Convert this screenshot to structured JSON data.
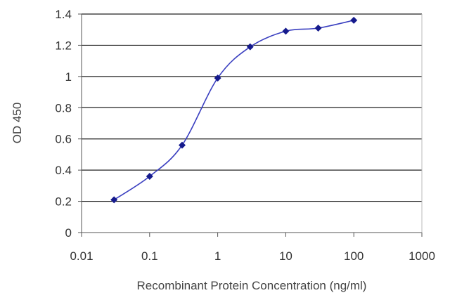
{
  "chart_data": {
    "type": "line",
    "title": "",
    "xlabel": "Recombinant Protein Concentration (ng/ml)",
    "ylabel": "OD 450",
    "x_scale": "log",
    "xlim": [
      0.01,
      1000
    ],
    "ylim": [
      0,
      1.4
    ],
    "x_ticks": [
      "0.01",
      "0.1",
      "1",
      "10",
      "100",
      "1000"
    ],
    "y_ticks": [
      "0",
      "0.2",
      "0.4",
      "0.6",
      "0.8",
      "1",
      "1.2",
      "1.4"
    ],
    "grid": "horizontal",
    "legend": "none",
    "series": [
      {
        "x": [
          0.03,
          0.1,
          0.3,
          1,
          3,
          10,
          30,
          100
        ],
        "y": [
          0.21,
          0.36,
          0.56,
          0.99,
          1.19,
          1.29,
          1.31,
          1.36
        ]
      }
    ],
    "colors": {
      "line": "#3a3fc0",
      "marker": "#151a8c",
      "grid": "#222222",
      "axis": "#555555"
    }
  }
}
